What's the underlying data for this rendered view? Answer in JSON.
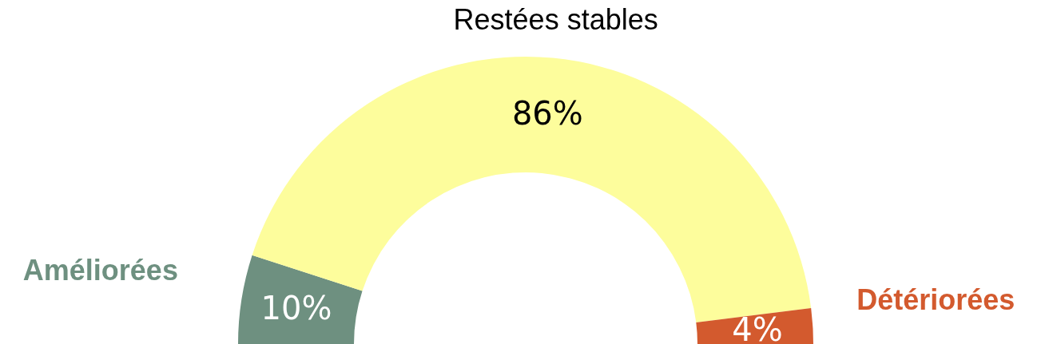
{
  "chart_data": {
    "type": "donut",
    "categories": [
      "Améliorées",
      "Restées stables",
      "Détériorées"
    ],
    "values": [
      10,
      86,
      4
    ],
    "colors": [
      "#6e9080",
      "#fdfd9c",
      "#d35a2e"
    ],
    "value_labels": [
      "10%",
      "86%",
      "4%"
    ]
  }
}
